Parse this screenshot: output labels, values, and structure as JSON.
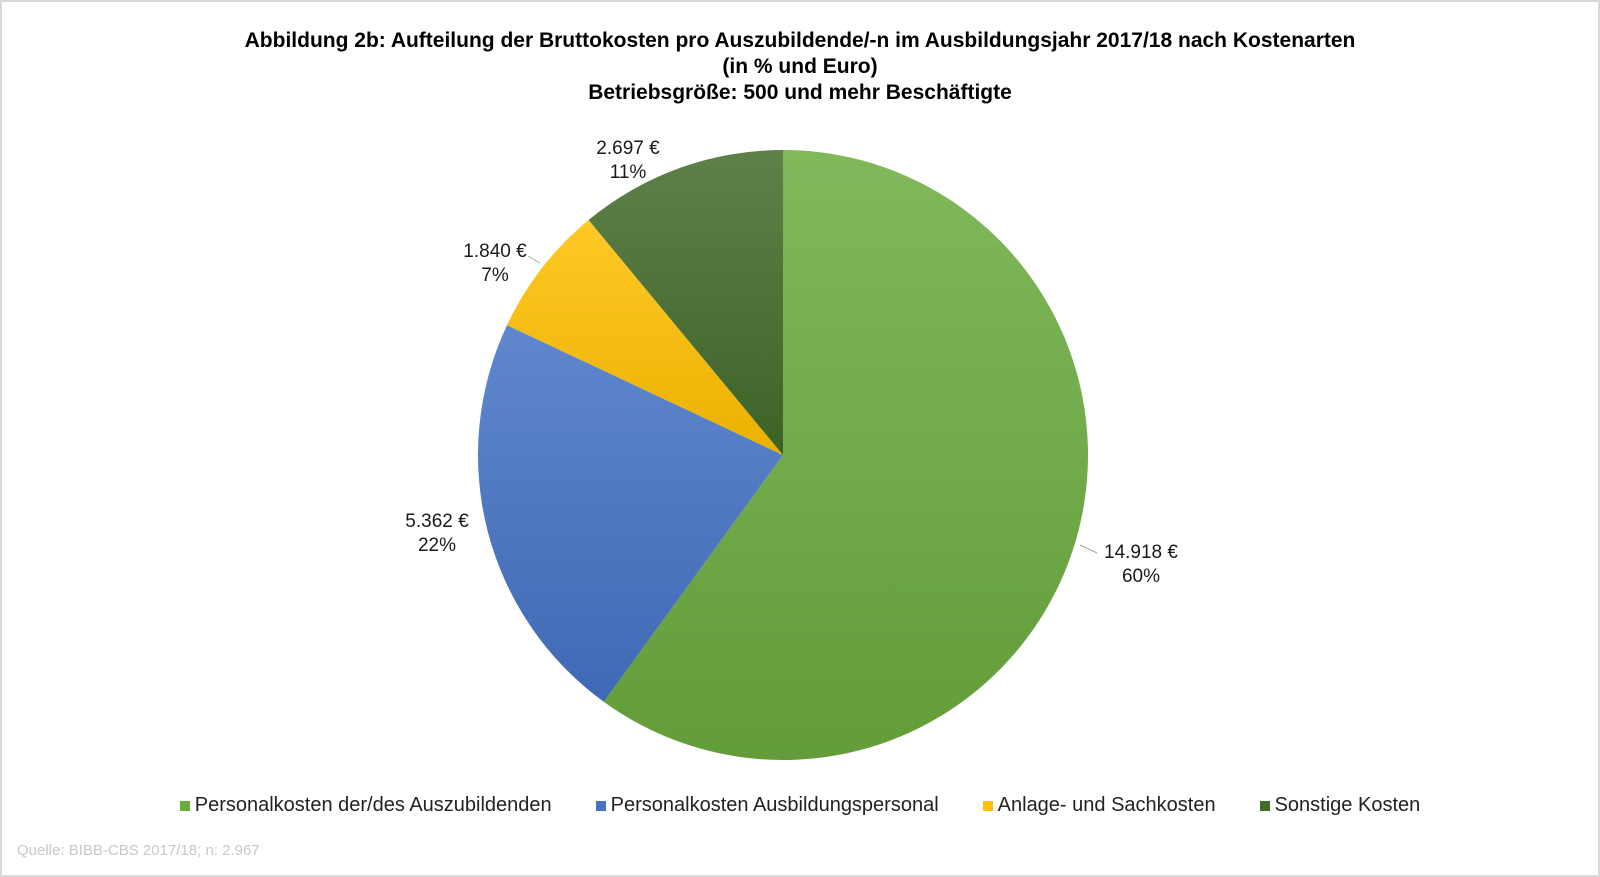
{
  "chart_data": {
    "type": "pie",
    "title_lines": [
      "Abbildung 2b: Aufteilung der Bruttokosten pro Auszubildende/-n im Ausbildungsjahr 2017/18  nach Kostenarten",
      "(in %  und Euro)",
      "Betriebsgröße: 500 und mehr Beschäftigte"
    ],
    "categories": [
      "Personalkosten der/des Auszubildenden",
      "Personalkosten Ausbildungspersonal",
      "Anlage- und Sachkosten",
      "Sonstige Kosten"
    ],
    "values_percent": [
      60,
      22,
      7,
      11
    ],
    "values_euro": [
      14918,
      5362,
      1840,
      2697
    ],
    "data_labels": [
      {
        "euro": "14.918 €",
        "percent": "60%"
      },
      {
        "euro": "5.362 €",
        "percent": "22%"
      },
      {
        "euro": "1.840 €",
        "percent": "7%"
      },
      {
        "euro": "2.697 €",
        "percent": "11%"
      }
    ],
    "colors": [
      "#6aab3e",
      "#4472c4",
      "#ffc000",
      "#426b29"
    ],
    "start_angle": "12 o'clock, clockwise",
    "legend_position": "bottom"
  },
  "source": "Quelle:  BIBB-CBS 2017/18; n:  2.967"
}
